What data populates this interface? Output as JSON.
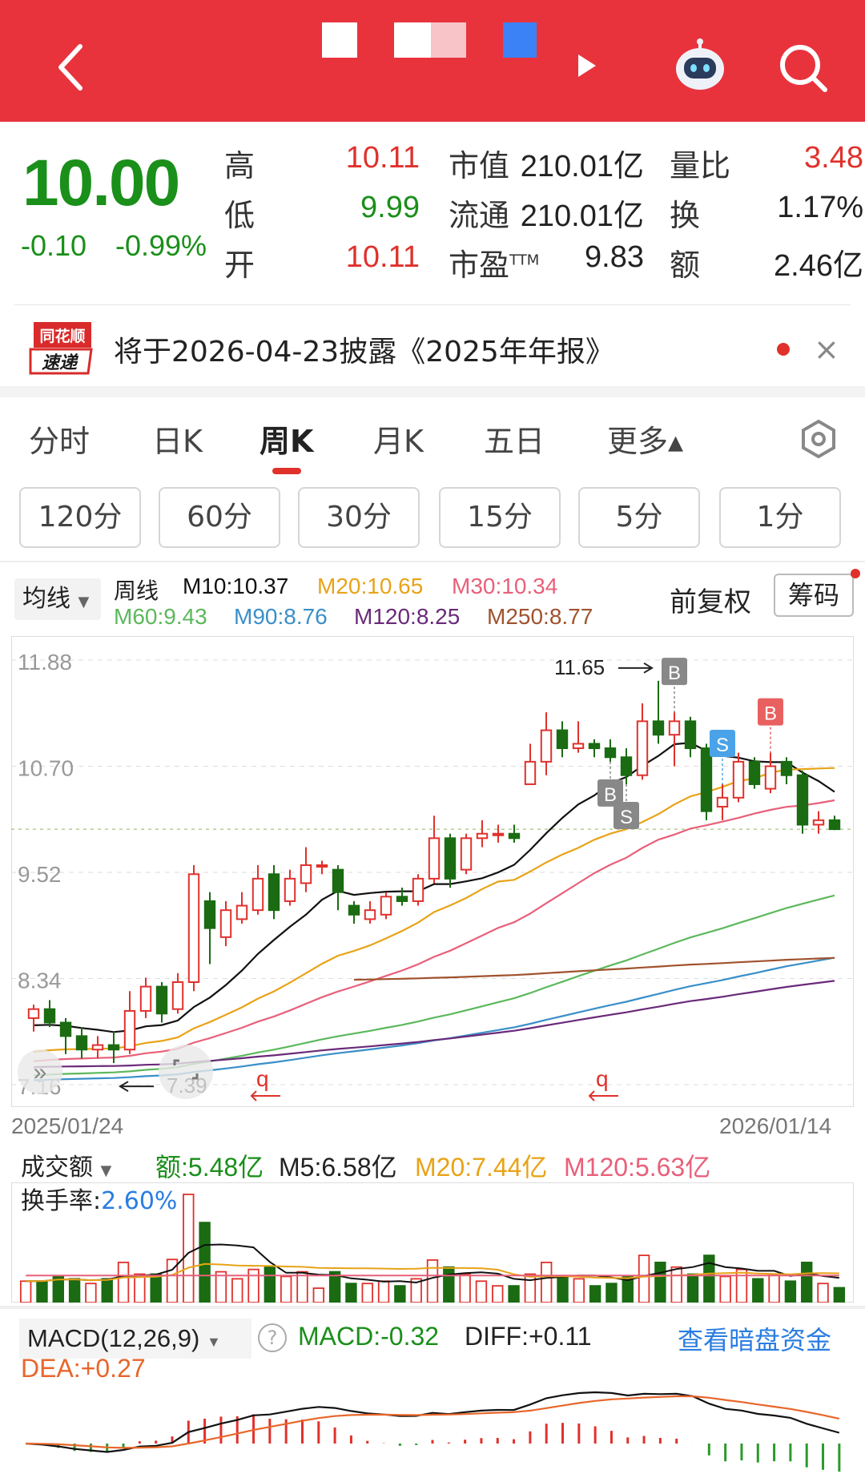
{
  "header": {
    "title_blocks": [
      {
        "color": "#ffffff",
        "opacity": 0.95
      },
      {
        "color": "#ffffff",
        "opacity": 0.9
      },
      {
        "color": "#f8c4c8",
        "opacity": 1
      },
      {
        "color": "#3b82f6",
        "opacity": 1
      }
    ]
  },
  "quote": {
    "price": "10.00",
    "change": "-0.10",
    "change_pct": "-0.99%",
    "high_label": "高",
    "high": "10.11",
    "low_label": "低",
    "low": "9.99",
    "open_label": "开",
    "open": "10.11",
    "mcap_label": "市值",
    "mcap": "210.01亿",
    "float_label": "流通",
    "float": "210.01亿",
    "pe_label": "市盈",
    "pe_sup": "TTM",
    "pe": "9.83",
    "vr_label": "量比",
    "vr": "3.48",
    "turnover_label": "换",
    "turnover": "1.17%",
    "amount_label": "额",
    "amount": "2.46亿"
  },
  "notice": {
    "logo_top": "同花顺",
    "logo_bottom": "速递",
    "text": "将于2026-04-23披露《2025年年报》",
    "close": "×"
  },
  "period_tabs": [
    "分时",
    "日K",
    "周K",
    "月K",
    "五日",
    "更多▴"
  ],
  "minute_tabs": [
    "120分",
    "60分",
    "30分",
    "15分",
    "5分",
    "1分"
  ],
  "indicators": {
    "dropdown": "均线",
    "period": "周线",
    "m10": "M10:10.37",
    "m20": "M20:10.65",
    "m30": "M30:10.34",
    "m60": "M60:9.43",
    "m90": "M90:8.76",
    "m120": "M120:8.25",
    "m250": "M250:8.77",
    "fq": "前复权",
    "chip": "筹码"
  },
  "chart_data": {
    "type": "candlestick",
    "y_ticks": [
      "11.88",
      "10.70",
      "9.52",
      "8.34",
      "7.16"
    ],
    "ylim": [
      7.16,
      11.88
    ],
    "high_mark": "11.65",
    "low_mark": "7.39",
    "last_price": 10.0,
    "date_start": "2025/01/24",
    "date_end": "2026/01/14",
    "markers": [
      {
        "label": "B",
        "color": "#888888",
        "candle": 40
      },
      {
        "label": "S",
        "color": "#4aa3e8",
        "candle": 43
      },
      {
        "label": "B",
        "color": "#e86060",
        "candle": 46
      },
      {
        "label": "B",
        "color": "#888888",
        "candle": 36
      },
      {
        "label": "S",
        "color": "#888888",
        "candle": 37
      }
    ],
    "candles": [
      [
        7.9,
        8.0,
        8.05,
        7.75
      ],
      [
        8.0,
        7.85,
        8.1,
        7.8
      ],
      [
        7.85,
        7.7,
        7.9,
        7.5
      ],
      [
        7.7,
        7.55,
        7.8,
        7.45
      ],
      [
        7.55,
        7.6,
        7.7,
        7.45
      ],
      [
        7.6,
        7.55,
        7.75,
        7.4
      ],
      [
        7.55,
        7.98,
        8.2,
        7.5
      ],
      [
        7.98,
        8.25,
        8.35,
        7.9
      ],
      [
        8.25,
        7.95,
        8.3,
        7.85
      ],
      [
        8.0,
        8.3,
        8.4,
        7.95
      ],
      [
        8.3,
        9.5,
        9.6,
        8.2
      ],
      [
        9.2,
        8.9,
        9.3,
        8.5
      ],
      [
        8.8,
        9.1,
        9.2,
        8.7
      ],
      [
        9.0,
        9.15,
        9.3,
        8.95
      ],
      [
        9.1,
        9.45,
        9.6,
        9.05
      ],
      [
        9.5,
        9.1,
        9.6,
        9.0
      ],
      [
        9.2,
        9.45,
        9.55,
        9.15
      ],
      [
        9.4,
        9.6,
        9.8,
        9.3
      ],
      [
        9.6,
        9.6,
        9.65,
        9.5
      ],
      [
        9.55,
        9.3,
        9.6,
        9.1
      ],
      [
        9.15,
        9.05,
        9.2,
        8.95
      ],
      [
        9.0,
        9.1,
        9.2,
        8.95
      ],
      [
        9.05,
        9.25,
        9.3,
        9.0
      ],
      [
        9.25,
        9.2,
        9.35,
        9.15
      ],
      [
        9.2,
        9.45,
        9.5,
        9.15
      ],
      [
        9.45,
        9.9,
        10.15,
        9.4
      ],
      [
        9.9,
        9.45,
        9.95,
        9.35
      ],
      [
        9.55,
        9.9,
        9.95,
        9.5
      ],
      [
        9.9,
        9.95,
        10.1,
        9.8
      ],
      [
        9.95,
        9.95,
        10.05,
        9.85
      ],
      [
        9.95,
        9.9,
        10.05,
        9.85
      ],
      [
        10.5,
        10.75,
        10.95,
        10.5
      ],
      [
        10.75,
        11.1,
        11.3,
        10.6
      ],
      [
        11.1,
        10.9,
        11.2,
        10.8
      ],
      [
        10.9,
        10.95,
        11.2,
        10.85
      ],
      [
        10.95,
        10.9,
        11.0,
        10.8
      ],
      [
        10.9,
        10.8,
        11.0,
        10.75
      ],
      [
        10.8,
        10.6,
        10.9,
        10.5
      ],
      [
        10.6,
        11.2,
        11.4,
        10.55
      ],
      [
        11.2,
        11.05,
        11.65,
        10.95
      ],
      [
        11.05,
        11.2,
        11.3,
        10.7
      ],
      [
        11.2,
        10.9,
        11.25,
        10.8
      ],
      [
        10.9,
        10.2,
        10.95,
        10.1
      ],
      [
        10.25,
        10.35,
        10.5,
        10.1
      ],
      [
        10.35,
        10.75,
        10.85,
        10.3
      ],
      [
        10.75,
        10.5,
        10.8,
        10.45
      ],
      [
        10.45,
        10.7,
        10.85,
        10.4
      ],
      [
        10.75,
        10.6,
        10.8,
        10.5
      ],
      [
        10.6,
        10.05,
        10.65,
        9.95
      ],
      [
        10.05,
        10.1,
        10.2,
        9.95
      ],
      [
        10.1,
        10.0,
        10.15,
        9.99
      ]
    ],
    "ma_lines": [
      {
        "name": "M10",
        "color": "#111111"
      },
      {
        "name": "M20",
        "color": "#e8a317"
      },
      {
        "name": "M30",
        "color": "#e8607a"
      },
      {
        "name": "M60",
        "color": "#5cb85c"
      },
      {
        "name": "M90",
        "color": "#3a8fc8"
      },
      {
        "name": "M120",
        "color": "#6a2a7a"
      },
      {
        "name": "M250",
        "color": "#a0522d"
      }
    ]
  },
  "volume": {
    "dropdown": "成交额",
    "amount": "额:5.48亿",
    "m5": "M5:6.58亿",
    "m20": "M20:7.44亿",
    "m120": "M120:5.63亿",
    "turnover_label": "换手率:",
    "turnover": "2.60%"
  },
  "macd": {
    "dropdown": "MACD(12,26,9)",
    "help": "?",
    "macd": "MACD:-0.32",
    "diff": "DIFF:+0.11",
    "dea": "DEA:+0.27",
    "link": "查看暗盘资金"
  }
}
